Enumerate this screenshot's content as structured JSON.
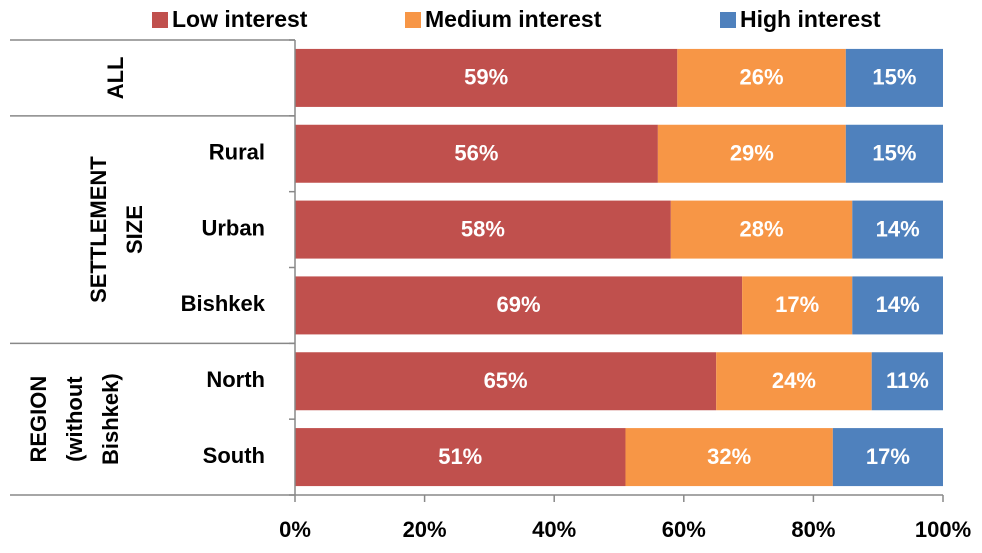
{
  "chart_data": {
    "type": "stacked-bar-horizontal",
    "categories": [
      null,
      "Rural",
      "Urban",
      "Bishkek",
      "North",
      "South"
    ],
    "groups": [
      {
        "lines": [
          "ALL"
        ]
      },
      {
        "lines": [
          "SETTLEMENT",
          "SIZE"
        ]
      },
      {
        "lines": [
          "REGION",
          "(without",
          "Bishkek)"
        ]
      }
    ],
    "series": [
      {
        "name": "Low interest",
        "color": "#c0504d",
        "values": [
          59,
          56,
          58,
          69,
          65,
          51
        ],
        "value_labels": [
          "59%",
          "56%",
          "58%",
          "69%",
          "65%",
          "51%"
        ]
      },
      {
        "name": "Medium interest",
        "color": "#f79646",
        "values": [
          26,
          29,
          28,
          17,
          24,
          32
        ],
        "value_labels": [
          "26%",
          "29%",
          "28%",
          "17%",
          "24%",
          "32%"
        ]
      },
      {
        "name": "High interest",
        "color": "#4f81bd",
        "values": [
          15,
          15,
          14,
          14,
          11,
          17
        ],
        "value_labels": [
          "15%",
          "15%",
          "14%",
          "14%",
          "11%",
          "17%"
        ]
      }
    ],
    "xlim": [
      0,
      100
    ],
    "xticks": [
      {
        "value": 0,
        "label": "0%"
      },
      {
        "value": 20,
        "label": "20%"
      },
      {
        "value": 40,
        "label": "40%"
      },
      {
        "value": 60,
        "label": "60%"
      },
      {
        "value": 80,
        "label": "80%"
      },
      {
        "value": 100,
        "label": "100%"
      }
    ],
    "legend": "top"
  }
}
